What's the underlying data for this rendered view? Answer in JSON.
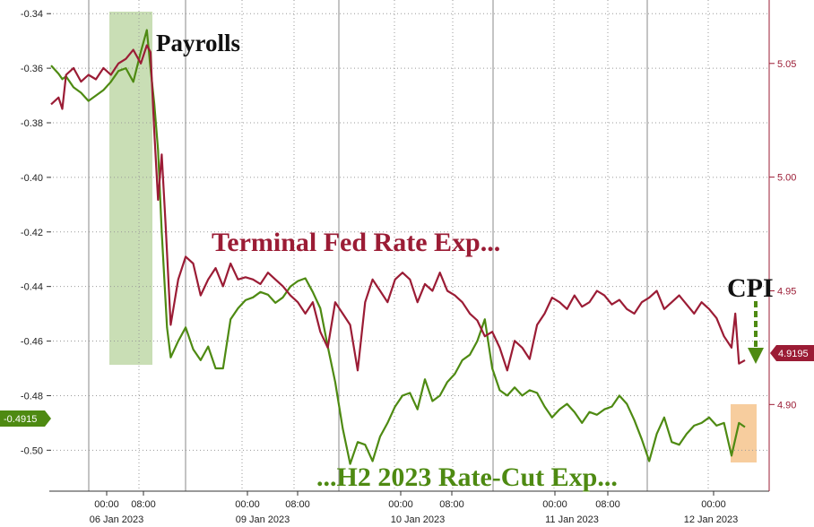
{
  "chart_data": {
    "type": "line",
    "title": "",
    "xlabel": "",
    "ylabel": "",
    "ylim": [
      -0.515,
      -0.335
    ],
    "y2lim": [
      4.8619,
      5.0779
    ],
    "yticks": [
      -0.34,
      -0.36,
      -0.38,
      -0.4,
      -0.42,
      -0.44,
      -0.46,
      -0.48,
      -0.5
    ],
    "y2ticks": [
      5.05,
      5.0,
      4.95,
      4.9
    ],
    "x_tick_labels": [
      "00:00",
      "08:00",
      "00:00",
      "08:00",
      "00:00",
      "08:00",
      "00:00",
      "08:00",
      "00:00"
    ],
    "date_labels": [
      "06 Jan 2023",
      "09 Jan 2023",
      "10 Jan 2023",
      "11 Jan 2023",
      "12 Jan 2023"
    ],
    "grid": true,
    "series": [
      {
        "name": "...H2 2023 Rate-Cut Exp...",
        "axis": "left",
        "color": "#4e8a12",
        "last_value_label": "-0.4915",
        "points": [
          [
            0,
            -0.359
          ],
          [
            1,
            -0.362
          ],
          [
            1.5,
            -0.364
          ],
          [
            2,
            -0.363
          ],
          [
            3,
            -0.367
          ],
          [
            4,
            -0.369
          ],
          [
            5,
            -0.372
          ],
          [
            6,
            -0.37
          ],
          [
            7,
            -0.368
          ],
          [
            8,
            -0.365
          ],
          [
            9,
            -0.361
          ],
          [
            10,
            -0.36
          ],
          [
            11,
            -0.365
          ],
          [
            12,
            -0.354
          ],
          [
            12.8,
            -0.346
          ],
          [
            13.3,
            -0.36
          ],
          [
            13.8,
            -0.373
          ],
          [
            14.3,
            -0.39
          ],
          [
            14.8,
            -0.42
          ],
          [
            15.5,
            -0.455
          ],
          [
            16,
            -0.466
          ],
          [
            17,
            -0.46
          ],
          [
            18,
            -0.455
          ],
          [
            19,
            -0.463
          ],
          [
            20,
            -0.467
          ],
          [
            21,
            -0.462
          ],
          [
            22,
            -0.47
          ],
          [
            23,
            -0.47
          ],
          [
            24,
            -0.452
          ],
          [
            25,
            -0.448
          ],
          [
            26,
            -0.445
          ],
          [
            27,
            -0.444
          ],
          [
            28,
            -0.442
          ],
          [
            29,
            -0.443
          ],
          [
            30,
            -0.446
          ],
          [
            31,
            -0.444
          ],
          [
            32,
            -0.44
          ],
          [
            33,
            -0.438
          ],
          [
            34,
            -0.437
          ],
          [
            35,
            -0.442
          ],
          [
            36,
            -0.448
          ],
          [
            37,
            -0.462
          ],
          [
            38,
            -0.475
          ],
          [
            39,
            -0.492
          ],
          [
            40,
            -0.505
          ],
          [
            41,
            -0.497
          ],
          [
            42,
            -0.498
          ],
          [
            43,
            -0.504
          ],
          [
            44,
            -0.495
          ],
          [
            45,
            -0.49
          ],
          [
            46,
            -0.484
          ],
          [
            47,
            -0.48
          ],
          [
            48,
            -0.479
          ],
          [
            49,
            -0.485
          ],
          [
            50,
            -0.474
          ],
          [
            51,
            -0.482
          ],
          [
            52,
            -0.48
          ],
          [
            53,
            -0.475
          ],
          [
            54,
            -0.472
          ],
          [
            55,
            -0.467
          ],
          [
            56,
            -0.465
          ],
          [
            57,
            -0.46
          ],
          [
            58,
            -0.452
          ],
          [
            59,
            -0.47
          ],
          [
            60,
            -0.478
          ],
          [
            61,
            -0.48
          ],
          [
            62,
            -0.477
          ],
          [
            63,
            -0.48
          ],
          [
            64,
            -0.478
          ],
          [
            65,
            -0.479
          ],
          [
            66,
            -0.484
          ],
          [
            67,
            -0.488
          ],
          [
            68,
            -0.485
          ],
          [
            69,
            -0.483
          ],
          [
            70,
            -0.486
          ],
          [
            71,
            -0.49
          ],
          [
            72,
            -0.486
          ],
          [
            73,
            -0.487
          ],
          [
            74,
            -0.485
          ],
          [
            75,
            -0.484
          ],
          [
            76,
            -0.48
          ],
          [
            77,
            -0.483
          ],
          [
            78,
            -0.489
          ],
          [
            79,
            -0.496
          ],
          [
            80,
            -0.504
          ],
          [
            81,
            -0.494
          ],
          [
            82,
            -0.488
          ],
          [
            83,
            -0.497
          ],
          [
            84,
            -0.498
          ],
          [
            85,
            -0.494
          ],
          [
            86,
            -0.491
          ],
          [
            87,
            -0.49
          ],
          [
            88,
            -0.488
          ],
          [
            89,
            -0.491
          ],
          [
            90,
            -0.49
          ],
          [
            91,
            -0.502
          ],
          [
            92,
            -0.49
          ],
          [
            92.8,
            -0.4915
          ]
        ]
      },
      {
        "name": "Terminal Fed Rate Exp...",
        "axis": "right",
        "color": "#9b1c35",
        "last_value_label": "4.9195",
        "points": [
          [
            0,
            5.032
          ],
          [
            1,
            5.035
          ],
          [
            1.5,
            5.03
          ],
          [
            2,
            5.045
          ],
          [
            3,
            5.048
          ],
          [
            4,
            5.042
          ],
          [
            5,
            5.045
          ],
          [
            6,
            5.043
          ],
          [
            7,
            5.048
          ],
          [
            8,
            5.045
          ],
          [
            9,
            5.05
          ],
          [
            10,
            5.052
          ],
          [
            11,
            5.056
          ],
          [
            12,
            5.05
          ],
          [
            12.8,
            5.058
          ],
          [
            13.3,
            5.055
          ],
          [
            13.8,
            5.02
          ],
          [
            14.3,
            4.99
          ],
          [
            14.8,
            5.01
          ],
          [
            15.3,
            4.98
          ],
          [
            16,
            4.935
          ],
          [
            17,
            4.955
          ],
          [
            18,
            4.965
          ],
          [
            19,
            4.962
          ],
          [
            20,
            4.948
          ],
          [
            21,
            4.955
          ],
          [
            22,
            4.96
          ],
          [
            23,
            4.952
          ],
          [
            24,
            4.962
          ],
          [
            25,
            4.955
          ],
          [
            26,
            4.956
          ],
          [
            27,
            4.955
          ],
          [
            28,
            4.953
          ],
          [
            29,
            4.958
          ],
          [
            30,
            4.955
          ],
          [
            31,
            4.952
          ],
          [
            32,
            4.948
          ],
          [
            33,
            4.945
          ],
          [
            34,
            4.94
          ],
          [
            35,
            4.945
          ],
          [
            36,
            4.932
          ],
          [
            37,
            4.925
          ],
          [
            38,
            4.945
          ],
          [
            39,
            4.94
          ],
          [
            40,
            4.935
          ],
          [
            41,
            4.915
          ],
          [
            42,
            4.945
          ],
          [
            43,
            4.955
          ],
          [
            44,
            4.95
          ],
          [
            45,
            4.945
          ],
          [
            46,
            4.955
          ],
          [
            47,
            4.958
          ],
          [
            48,
            4.955
          ],
          [
            49,
            4.945
          ],
          [
            50,
            4.953
          ],
          [
            51,
            4.95
          ],
          [
            52,
            4.958
          ],
          [
            53,
            4.95
          ],
          [
            54,
            4.948
          ],
          [
            55,
            4.945
          ],
          [
            56,
            4.94
          ],
          [
            57,
            4.937
          ],
          [
            58,
            4.93
          ],
          [
            59,
            4.932
          ],
          [
            60,
            4.925
          ],
          [
            61,
            4.915
          ],
          [
            62,
            4.928
          ],
          [
            63,
            4.925
          ],
          [
            64,
            4.92
          ],
          [
            65,
            4.935
          ],
          [
            66,
            4.94
          ],
          [
            67,
            4.947
          ],
          [
            68,
            4.945
          ],
          [
            69,
            4.942
          ],
          [
            70,
            4.948
          ],
          [
            71,
            4.943
          ],
          [
            72,
            4.945
          ],
          [
            73,
            4.95
          ],
          [
            74,
            4.948
          ],
          [
            75,
            4.944
          ],
          [
            76,
            4.946
          ],
          [
            77,
            4.942
          ],
          [
            78,
            4.94
          ],
          [
            79,
            4.945
          ],
          [
            80,
            4.947
          ],
          [
            81,
            4.95
          ],
          [
            82,
            4.942
          ],
          [
            83,
            4.945
          ],
          [
            84,
            4.948
          ],
          [
            85,
            4.944
          ],
          [
            86,
            4.94
          ],
          [
            87,
            4.945
          ],
          [
            88,
            4.942
          ],
          [
            89,
            4.938
          ],
          [
            90,
            4.93
          ],
          [
            91,
            4.925
          ],
          [
            91.5,
            4.94
          ],
          [
            92,
            4.918
          ],
          [
            92.8,
            4.9195
          ]
        ]
      }
    ],
    "annotations": {
      "payrolls": "Payrolls",
      "terminal_label": "Terminal Fed Rate Exp...",
      "cut_label": "...H2 2023 Rate-Cut Exp...",
      "cpi": "CPI"
    },
    "colors": {
      "green": "#4e8a12",
      "red": "#9b1c35",
      "payrolls_band": "#c9deb5",
      "cpi_band": "#f7cd9e",
      "grid": "#999999"
    }
  }
}
